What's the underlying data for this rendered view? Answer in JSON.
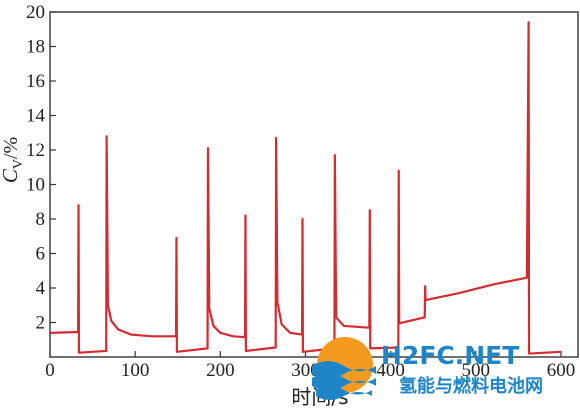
{
  "chart_data": {
    "type": "line",
    "xlabel": "时间/s",
    "ylabel": {
      "main": "C",
      "sub": "V",
      "unit": "/%"
    },
    "xlim": [
      0,
      620
    ],
    "ylim": [
      0,
      20
    ],
    "xticks": [
      0,
      100,
      200,
      300,
      400,
      500,
      600
    ],
    "xtick_labels": [
      "0",
      "100",
      "200",
      "300",
      "400",
      "500",
      "600"
    ],
    "yticks": [
      2,
      4,
      6,
      8,
      10,
      12,
      14,
      16,
      18,
      20
    ],
    "ytick_labels": [
      "2",
      "4",
      "6",
      "8",
      "10",
      "12",
      "14",
      "16",
      "18",
      "20"
    ],
    "grid": false,
    "series": [
      {
        "color": "#d42a30",
        "points": [
          [
            0,
            1.4
          ],
          [
            33,
            1.45
          ],
          [
            33.5,
            8.8
          ],
          [
            34,
            0.25
          ],
          [
            66,
            0.35
          ],
          [
            66.5,
            12.8
          ],
          [
            68,
            3.0
          ],
          [
            72,
            2.1
          ],
          [
            80,
            1.6
          ],
          [
            95,
            1.3
          ],
          [
            120,
            1.2
          ],
          [
            148,
            1.2
          ],
          [
            148.5,
            6.9
          ],
          [
            149,
            0.3
          ],
          [
            185,
            0.5
          ],
          [
            185.5,
            12.1
          ],
          [
            187,
            2.8
          ],
          [
            192,
            1.8
          ],
          [
            200,
            1.4
          ],
          [
            215,
            1.2
          ],
          [
            229,
            1.15
          ],
          [
            229.5,
            8.2
          ],
          [
            230,
            0.35
          ],
          [
            265,
            0.55
          ],
          [
            265.5,
            12.7
          ],
          [
            267,
            3.2
          ],
          [
            272,
            1.9
          ],
          [
            282,
            1.4
          ],
          [
            296,
            1.3
          ],
          [
            296.5,
            8.0
          ],
          [
            297,
            0.3
          ],
          [
            334,
            0.5
          ],
          [
            334.5,
            11.7
          ],
          [
            336,
            2.3
          ],
          [
            345,
            1.8
          ],
          [
            375,
            1.7
          ],
          [
            375.5,
            8.5
          ],
          [
            376,
            0.5
          ],
          [
            409,
            0.55
          ],
          [
            409.5,
            10.8
          ],
          [
            410,
            1.95
          ],
          [
            440,
            2.3
          ],
          [
            440.5,
            4.1
          ],
          [
            441,
            3.3
          ],
          [
            480,
            3.7
          ],
          [
            520,
            4.2
          ],
          [
            560,
            4.6
          ],
          [
            562,
            19.4
          ],
          [
            562.5,
            0.2
          ],
          [
            600,
            0.3
          ]
        ]
      }
    ]
  },
  "watermark": {
    "line1": "H2FC.NET",
    "line2": "氢能与燃料电池网",
    "color": "#1e86c8"
  }
}
